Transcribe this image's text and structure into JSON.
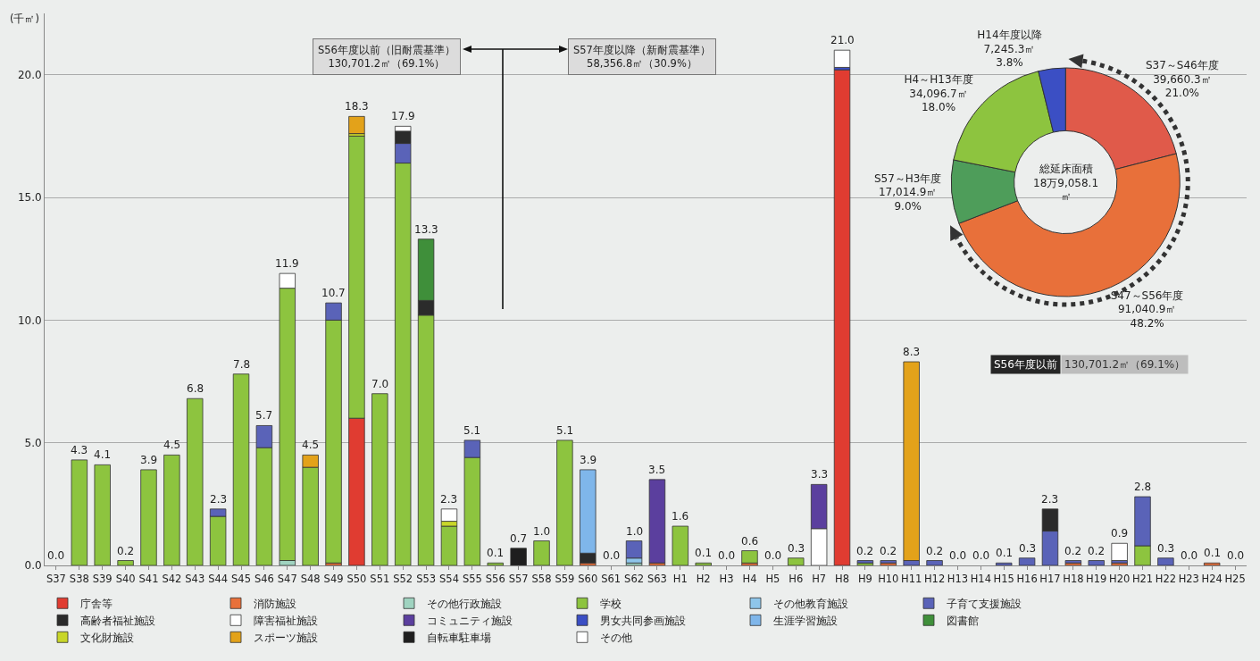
{
  "chart_data": [
    {
      "type": "bar",
      "stacked": true,
      "ylabel": "(千㎡)",
      "ylim": [
        0,
        22.5
      ],
      "yticks": [
        {
          "value": 0,
          "label": "0.0"
        },
        {
          "value": 5,
          "label": "5.0"
        },
        {
          "value": 10,
          "label": "10.0"
        },
        {
          "value": 15,
          "label": "15.0"
        },
        {
          "value": 20,
          "label": "20.0"
        }
      ],
      "grid": "y",
      "legend": "bottom",
      "categories": [
        "S37",
        "S38",
        "S39",
        "S40",
        "S41",
        "S42",
        "S43",
        "S44",
        "S45",
        "S46",
        "S47",
        "S48",
        "S49",
        "S50",
        "S51",
        "S52",
        "S53",
        "S54",
        "S55",
        "S56",
        "S57",
        "S58",
        "S59",
        "S60",
        "S61",
        "S62",
        "S63",
        "H1",
        "H2",
        "H3",
        "H4",
        "H5",
        "H6",
        "H7",
        "H8",
        "H9",
        "H10",
        "H11",
        "H12",
        "H13",
        "H14",
        "H15",
        "H16",
        "H17",
        "H18",
        "H19",
        "H20",
        "H21",
        "H22",
        "H23",
        "H24",
        "H25"
      ],
      "series": [
        {
          "name": "庁舎等",
          "color": "#e03c31",
          "values": [
            null,
            null,
            null,
            null,
            null,
            null,
            null,
            null,
            null,
            null,
            null,
            null,
            null,
            6.0,
            null,
            null,
            null,
            null,
            null,
            null,
            null,
            null,
            null,
            null,
            null,
            null,
            null,
            null,
            null,
            null,
            null,
            null,
            null,
            null,
            20.2,
            null,
            null,
            null,
            null,
            null,
            null,
            null,
            null,
            null,
            null,
            null,
            null,
            null,
            null,
            null,
            null,
            null
          ]
        },
        {
          "name": "消防施設",
          "color": "#e8703a",
          "values": [
            null,
            null,
            null,
            null,
            null,
            null,
            null,
            null,
            null,
            null,
            null,
            null,
            0.1,
            null,
            null,
            null,
            null,
            null,
            null,
            null,
            null,
            null,
            null,
            0.1,
            null,
            null,
            0.1,
            null,
            null,
            null,
            0.1,
            null,
            null,
            null,
            null,
            null,
            0.1,
            null,
            null,
            null,
            null,
            null,
            null,
            null,
            0.1,
            null,
            0.1,
            null,
            null,
            null,
            0.1,
            null
          ]
        },
        {
          "name": "その他行政施設",
          "color": "#9fd3c0",
          "values": [
            null,
            null,
            null,
            null,
            null,
            null,
            null,
            null,
            null,
            null,
            0.2,
            null,
            null,
            null,
            null,
            null,
            null,
            null,
            null,
            null,
            null,
            null,
            null,
            null,
            null,
            0.1,
            null,
            null,
            null,
            null,
            null,
            null,
            null,
            null,
            null,
            null,
            null,
            null,
            null,
            null,
            null,
            null,
            null,
            null,
            null,
            null,
            null,
            null,
            null,
            null,
            null,
            null
          ]
        },
        {
          "name": "学校",
          "color": "#8dc43f",
          "values": [
            null,
            4.3,
            4.1,
            0.2,
            3.9,
            4.5,
            6.8,
            2.0,
            7.8,
            4.8,
            11.1,
            4.0,
            9.9,
            11.5,
            7.0,
            16.4,
            10.2,
            1.6,
            4.4,
            0.1,
            null,
            1.0,
            5.1,
            null,
            null,
            null,
            null,
            1.6,
            0.1,
            null,
            0.5,
            null,
            0.3,
            null,
            null,
            0.1,
            null,
            null,
            null,
            null,
            null,
            null,
            null,
            null,
            null,
            null,
            null,
            0.8,
            null,
            null,
            null,
            null
          ]
        },
        {
          "name": "その他教育施設",
          "color": "#8ec5ea",
          "values": [
            null,
            null,
            null,
            null,
            null,
            null,
            null,
            null,
            null,
            null,
            null,
            null,
            null,
            null,
            null,
            null,
            null,
            null,
            null,
            null,
            null,
            null,
            null,
            null,
            null,
            0.2,
            null,
            null,
            null,
            null,
            null,
            null,
            null,
            null,
            null,
            null,
            null,
            null,
            null,
            null,
            null,
            null,
            null,
            null,
            null,
            null,
            null,
            null,
            null,
            null,
            null,
            null
          ]
        },
        {
          "name": "子育て支援施設",
          "color": "#5a63b8",
          "values": [
            null,
            null,
            null,
            null,
            null,
            null,
            null,
            0.3,
            null,
            0.9,
            null,
            null,
            0.7,
            null,
            null,
            0.8,
            null,
            null,
            0.7,
            null,
            null,
            null,
            null,
            null,
            null,
            0.7,
            null,
            null,
            null,
            null,
            null,
            null,
            null,
            null,
            null,
            0.1,
            0.1,
            0.2,
            0.2,
            null,
            null,
            0.1,
            0.3,
            1.4,
            0.1,
            0.2,
            0.1,
            2.0,
            0.3,
            null,
            null,
            null
          ]
        },
        {
          "name": "高齢者福祉施設",
          "color": "#2b2b2b",
          "values": [
            null,
            null,
            null,
            null,
            null,
            null,
            null,
            null,
            null,
            null,
            null,
            null,
            null,
            null,
            null,
            0.5,
            0.6,
            null,
            null,
            null,
            null,
            null,
            null,
            0.4,
            null,
            null,
            null,
            null,
            null,
            null,
            null,
            null,
            null,
            null,
            null,
            null,
            null,
            null,
            null,
            null,
            null,
            null,
            null,
            0.9,
            null,
            null,
            null,
            null,
            null,
            null,
            null,
            null
          ]
        },
        {
          "name": "障害福祉施設",
          "color": "#ffffff",
          "values": [
            null,
            null,
            null,
            null,
            null,
            null,
            null,
            null,
            null,
            null,
            null,
            null,
            null,
            null,
            null,
            null,
            null,
            null,
            null,
            null,
            null,
            null,
            null,
            null,
            null,
            null,
            null,
            null,
            null,
            null,
            null,
            null,
            null,
            1.5,
            null,
            null,
            null,
            null,
            null,
            null,
            null,
            null,
            null,
            null,
            null,
            null,
            0.7,
            null,
            null,
            null,
            null,
            null
          ]
        },
        {
          "name": "コミュニティ施設",
          "color": "#5b3f9e",
          "values": [
            null,
            null,
            null,
            null,
            null,
            null,
            null,
            null,
            null,
            null,
            null,
            null,
            null,
            null,
            null,
            null,
            null,
            null,
            null,
            null,
            null,
            null,
            null,
            null,
            null,
            null,
            3.4,
            null,
            null,
            null,
            null,
            null,
            null,
            1.8,
            null,
            null,
            null,
            null,
            null,
            null,
            null,
            null,
            null,
            null,
            null,
            null,
            null,
            null,
            null,
            null,
            null,
            null
          ]
        },
        {
          "name": "男女共同参画施設",
          "color": "#3b4fc4",
          "values": [
            null,
            null,
            null,
            null,
            null,
            null,
            null,
            null,
            null,
            null,
            null,
            null,
            null,
            null,
            null,
            null,
            null,
            null,
            null,
            null,
            null,
            null,
            null,
            null,
            null,
            null,
            null,
            null,
            null,
            null,
            null,
            null,
            null,
            null,
            0.1,
            null,
            null,
            null,
            null,
            null,
            null,
            null,
            null,
            null,
            null,
            null,
            null,
            null,
            null,
            null,
            null,
            null
          ]
        },
        {
          "name": "生涯学習施設",
          "color": "#7fb6ea",
          "values": [
            null,
            null,
            null,
            null,
            null,
            null,
            null,
            null,
            null,
            null,
            null,
            null,
            null,
            null,
            null,
            null,
            null,
            null,
            null,
            null,
            null,
            null,
            null,
            3.4,
            null,
            null,
            null,
            null,
            null,
            null,
            null,
            null,
            null,
            null,
            null,
            null,
            null,
            null,
            null,
            null,
            null,
            null,
            null,
            null,
            null,
            null,
            null,
            null,
            null,
            null,
            null,
            null
          ]
        },
        {
          "name": "図書館",
          "color": "#3f8f3a",
          "values": [
            null,
            null,
            null,
            null,
            null,
            null,
            null,
            null,
            null,
            null,
            null,
            null,
            null,
            null,
            null,
            null,
            2.5,
            null,
            null,
            null,
            null,
            null,
            null,
            null,
            null,
            null,
            null,
            null,
            null,
            null,
            null,
            null,
            null,
            null,
            null,
            null,
            null,
            null,
            null,
            null,
            null,
            null,
            null,
            null,
            null,
            null,
            null,
            null,
            null,
            null,
            null,
            null
          ]
        },
        {
          "name": "文化財施設",
          "color": "#c8d629",
          "values": [
            null,
            null,
            null,
            null,
            null,
            null,
            null,
            null,
            null,
            null,
            null,
            null,
            null,
            0.1,
            null,
            null,
            null,
            0.2,
            null,
            null,
            null,
            null,
            null,
            null,
            null,
            null,
            null,
            null,
            null,
            null,
            null,
            null,
            null,
            null,
            null,
            null,
            null,
            null,
            null,
            null,
            null,
            null,
            null,
            null,
            null,
            null,
            null,
            null,
            null,
            null,
            null,
            null
          ]
        },
        {
          "name": "スポーツ施設",
          "color": "#e3a21a",
          "values": [
            null,
            null,
            null,
            null,
            null,
            null,
            null,
            null,
            null,
            null,
            null,
            0.5,
            null,
            0.7,
            null,
            null,
            null,
            null,
            null,
            null,
            null,
            null,
            null,
            null,
            null,
            null,
            null,
            null,
            null,
            null,
            null,
            null,
            null,
            null,
            null,
            null,
            null,
            8.1,
            null,
            null,
            null,
            null,
            null,
            null,
            null,
            null,
            null,
            null,
            null,
            null,
            null,
            null
          ]
        },
        {
          "name": "自転車駐車場",
          "color": "#1e1e1e",
          "values": [
            null,
            null,
            null,
            null,
            null,
            null,
            null,
            null,
            null,
            null,
            null,
            null,
            null,
            null,
            null,
            null,
            null,
            null,
            null,
            null,
            0.7,
            null,
            null,
            null,
            null,
            null,
            null,
            null,
            null,
            null,
            null,
            null,
            null,
            null,
            null,
            null,
            null,
            null,
            null,
            null,
            null,
            null,
            null,
            null,
            null,
            null,
            null,
            null,
            null,
            null,
            null,
            null
          ]
        },
        {
          "name": "その他",
          "color": "#ffffff",
          "values": [
            null,
            null,
            null,
            null,
            null,
            null,
            null,
            null,
            null,
            null,
            0.6,
            null,
            null,
            null,
            null,
            0.2,
            null,
            0.5,
            null,
            null,
            null,
            null,
            null,
            null,
            null,
            null,
            null,
            null,
            null,
            null,
            null,
            null,
            null,
            null,
            0.7,
            null,
            null,
            null,
            null,
            null,
            null,
            null,
            null,
            null,
            null,
            null,
            null,
            null,
            null,
            null,
            null,
            null
          ]
        }
      ],
      "totals": [
        "0.0",
        "4.3",
        "4.1",
        "0.2",
        "3.9",
        "4.5",
        "6.8",
        "2.3",
        "7.8",
        "5.7",
        "11.9",
        "4.5",
        "10.7",
        "18.3",
        "7.0",
        "17.9",
        "13.3",
        "2.3",
        "5.1",
        "0.1",
        "0.7",
        "1.0",
        "5.1",
        "3.9",
        "0.0",
        "1.0",
        "3.5",
        "1.6",
        "0.1",
        "0.0",
        "0.6",
        "0.0",
        "0.3",
        "3.3",
        "21.0",
        "0.2",
        "0.2",
        "8.3",
        "0.2",
        "0.0",
        "0.0",
        "0.1",
        "0.3",
        "2.3",
        "0.2",
        "0.2",
        "0.9",
        "2.8",
        "0.3",
        "0.0",
        "0.1",
        "0.0"
      ],
      "annotations": [
        "S56年度以前（旧耐震基準）\n130,701.2㎡（69.1%）",
        "S57年度以降（新耐震基準）\n58,356.8㎡（30.9%）"
      ]
    },
    {
      "type": "donut",
      "categories": [
        "S37～S46年度",
        "S47～S56年度",
        "S57～H3年度",
        "H4～H13年度",
        "H14年度以降"
      ],
      "values": [
        39660.3,
        91040.9,
        17014.9,
        34096.7,
        7245.3
      ],
      "value_labels": [
        "39,660.3㎡\n21.0%",
        "91,040.9㎡\n48.2%",
        "17,014.9㎡\n9.0%",
        "34,096.7㎡\n18.0%",
        "7,245.3㎡\n3.8%"
      ],
      "colors": [
        "#e05a4a",
        "#e8703a",
        "#4e9d5a",
        "#8dc43f",
        "#3b4fc4"
      ],
      "annotations": [
        "総延床面積\n18万9,058.1\n㎡",
        "S56年度以前",
        "130,701.2㎡（69.1%）"
      ]
    }
  ]
}
